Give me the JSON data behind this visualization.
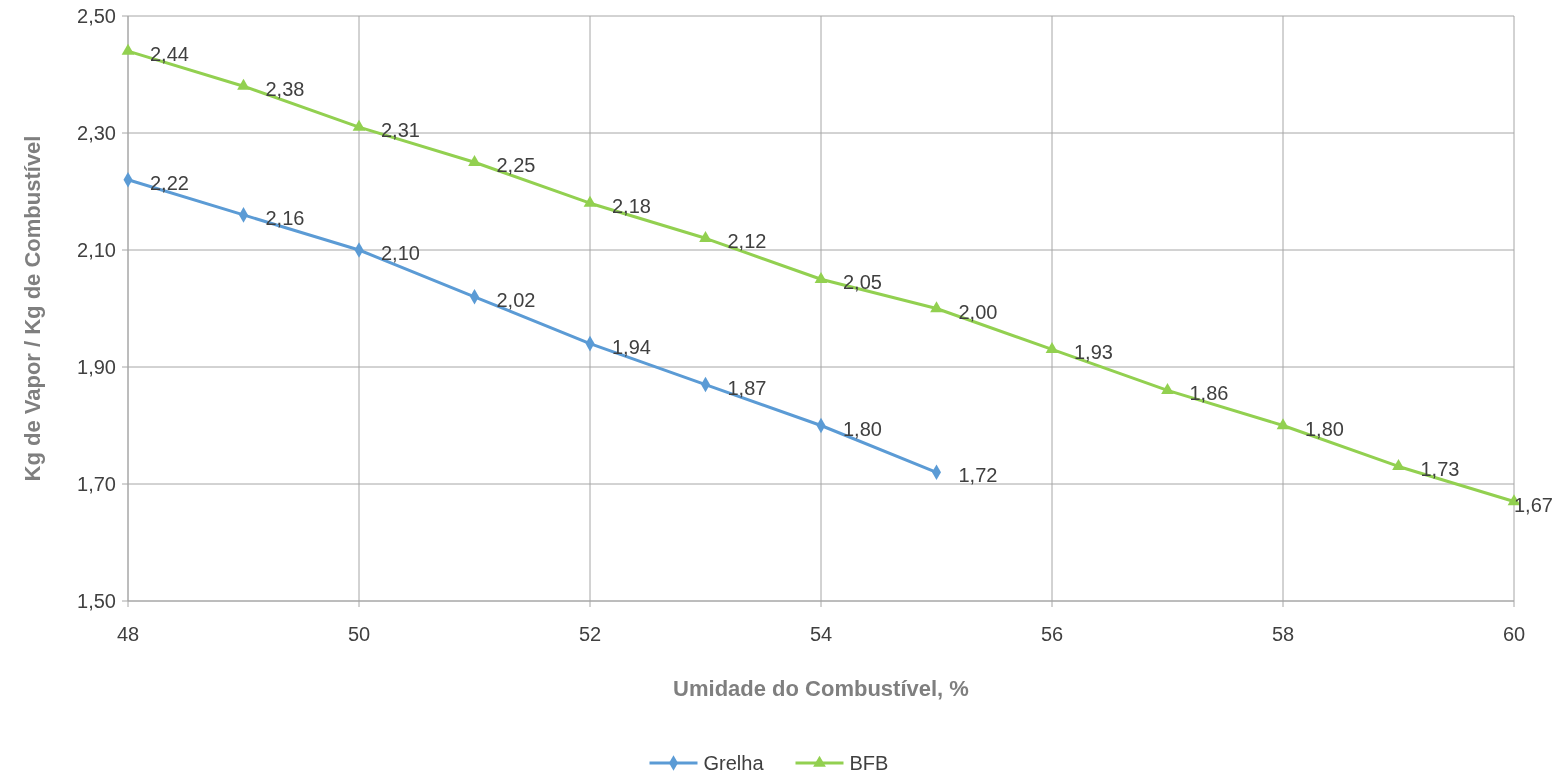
{
  "chart_data": {
    "type": "line",
    "xlabel": "Umidade do Combustível, %",
    "ylabel": "Kg de Vapor / Kg de Combustível",
    "xlim": [
      48,
      60
    ],
    "xticks": [
      48,
      50,
      52,
      54,
      56,
      58,
      60
    ],
    "ylim": [
      1.5,
      2.5
    ],
    "yticks": [
      {
        "value": 1.5,
        "label": "1,50"
      },
      {
        "value": 1.7,
        "label": "1,70"
      },
      {
        "value": 1.9,
        "label": "1,90"
      },
      {
        "value": 2.1,
        "label": "2,10"
      },
      {
        "value": 2.3,
        "label": "2,30"
      },
      {
        "value": 2.5,
        "label": "2,50"
      }
    ],
    "grid": true,
    "legend": "bottom",
    "series": [
      {
        "name": "Grelha",
        "color": "#5b9bd5",
        "marker": "diamond",
        "x": [
          48,
          49,
          50,
          51,
          52,
          53,
          54,
          55
        ],
        "values": [
          2.22,
          2.16,
          2.1,
          2.02,
          1.94,
          1.87,
          1.8,
          1.72
        ],
        "value_labels": [
          "2,22",
          "2,16",
          "2,10",
          "2,02",
          "1,94",
          "1,87",
          "1,80",
          "1,72"
        ]
      },
      {
        "name": "BFB",
        "color": "#92d050",
        "marker": "triangle",
        "x": [
          48,
          49,
          50,
          51,
          52,
          53,
          54,
          55,
          56,
          57,
          58,
          59,
          60
        ],
        "values": [
          2.44,
          2.38,
          2.31,
          2.25,
          2.18,
          2.12,
          2.05,
          2.0,
          1.93,
          1.86,
          1.8,
          1.73,
          1.67
        ],
        "value_labels": [
          "2,44",
          "2,38",
          "2,31",
          "2,25",
          "2,18",
          "2,12",
          "2,05",
          "2,00",
          "1,93",
          "1,86",
          "1,80",
          "1,73",
          "1,67"
        ]
      }
    ]
  }
}
